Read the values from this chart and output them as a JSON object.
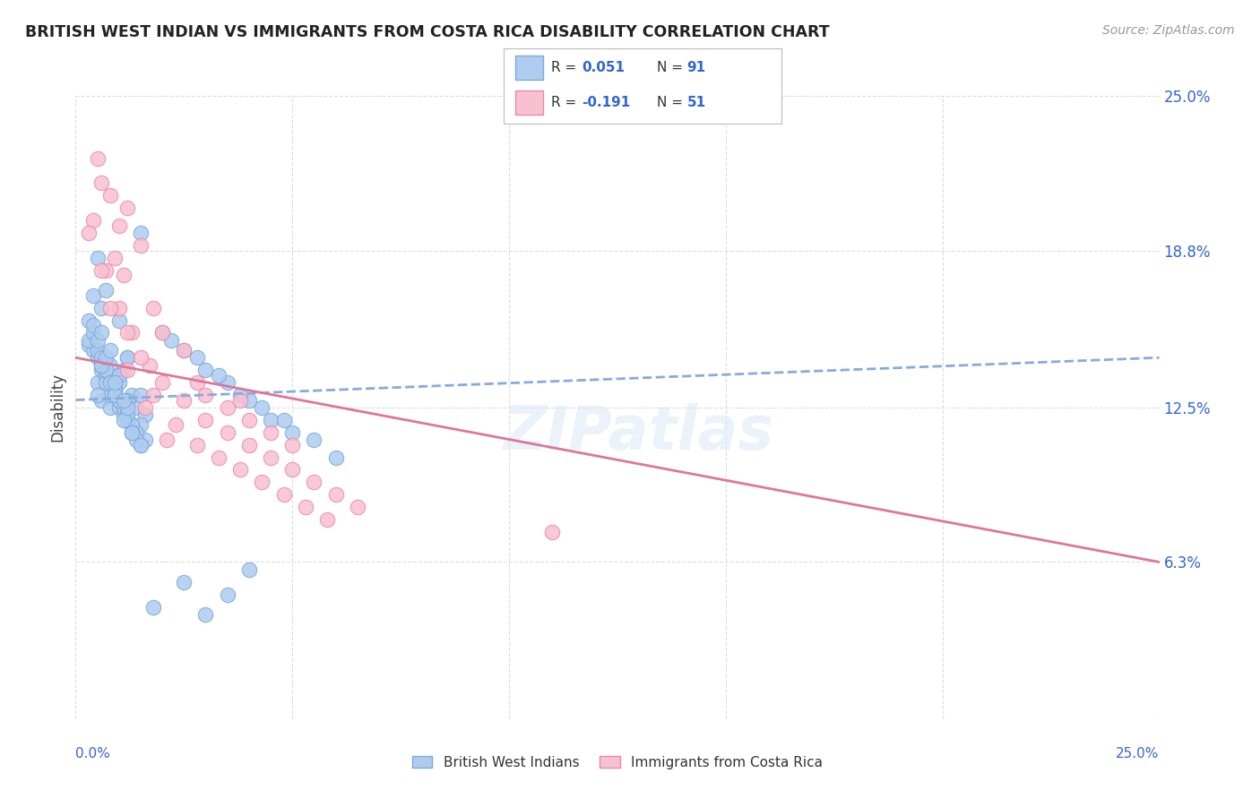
{
  "title": "BRITISH WEST INDIAN VS IMMIGRANTS FROM COSTA RICA DISABILITY CORRELATION CHART",
  "source": "Source: ZipAtlas.com",
  "xmin": 0.0,
  "xmax": 25.0,
  "ymin": 0.0,
  "ymax": 25.0,
  "legend_r1": "0.051",
  "legend_n1": "91",
  "legend_r2": "-0.191",
  "legend_n2": "51",
  "series1_label": "British West Indians",
  "series2_label": "Immigrants from Costa Rica",
  "series1_color": "#aeccf0",
  "series2_color": "#f8c0d0",
  "series1_edge_color": "#7aaad8",
  "series2_edge_color": "#e88aaa",
  "trend_color_blue": "#88aadd",
  "trend_color_pink": "#dd7799",
  "r_color": "#3366cc",
  "background_color": "#ffffff",
  "grid_color": "#dddddd",
  "title_color": "#222222",
  "watermark": "ZIPatlas",
  "series1_x": [
    0.5,
    0.8,
    1.0,
    1.2,
    0.3,
    0.6,
    0.9,
    1.1,
    1.4,
    0.7,
    1.3,
    1.6,
    0.4,
    0.8,
    1.0,
    1.5,
    0.6,
    0.9,
    1.2,
    0.3,
    0.5,
    0.7,
    1.0,
    1.3,
    1.6,
    0.4,
    0.8,
    1.1,
    0.6,
    0.9,
    1.2,
    0.5,
    0.7,
    1.0,
    1.4,
    0.3,
    0.6,
    0.8,
    1.1,
    1.3,
    0.5,
    0.7,
    0.9,
    1.2,
    1.5,
    0.4,
    0.6,
    0.8,
    1.0,
    1.3,
    0.5,
    0.7,
    0.9,
    1.1,
    1.4,
    0.6,
    0.8,
    1.0,
    1.2,
    1.5,
    0.4,
    0.6,
    0.9,
    1.1,
    1.3,
    0.5,
    0.7,
    1.0,
    1.2,
    1.5,
    2.0,
    2.5,
    3.0,
    3.5,
    4.0,
    4.5,
    5.0,
    6.0,
    2.2,
    2.8,
    3.3,
    3.8,
    4.3,
    4.8,
    5.5,
    1.8,
    2.5,
    3.0,
    3.5,
    4.0,
    1.5
  ],
  "series1_y": [
    13.5,
    14.2,
    13.8,
    14.5,
    15.0,
    12.8,
    13.2,
    14.0,
    12.5,
    13.8,
    13.0,
    12.2,
    14.8,
    12.5,
    13.5,
    11.8,
    14.0,
    13.2,
    12.8,
    15.2,
    14.5,
    13.8,
    12.5,
    11.8,
    11.2,
    15.5,
    13.0,
    12.2,
    14.2,
    13.5,
    12.0,
    14.8,
    13.5,
    12.8,
    11.5,
    16.0,
    14.5,
    13.8,
    12.5,
    11.8,
    15.2,
    14.0,
    13.2,
    12.2,
    11.0,
    15.8,
    14.2,
    13.5,
    12.8,
    11.5,
    13.0,
    14.5,
    13.0,
    12.0,
    11.2,
    16.5,
    14.8,
    13.8,
    12.5,
    11.0,
    17.0,
    15.5,
    13.5,
    12.8,
    11.5,
    18.5,
    17.2,
    16.0,
    14.5,
    13.0,
    15.5,
    14.8,
    14.0,
    13.5,
    12.8,
    12.0,
    11.5,
    10.5,
    15.2,
    14.5,
    13.8,
    13.0,
    12.5,
    12.0,
    11.2,
    4.5,
    5.5,
    4.2,
    5.0,
    6.0,
    19.5
  ],
  "series2_x": [
    0.5,
    0.8,
    1.2,
    1.0,
    0.6,
    0.9,
    1.5,
    0.4,
    1.1,
    1.8,
    2.0,
    2.5,
    0.7,
    1.3,
    1.7,
    2.8,
    3.0,
    3.5,
    4.0,
    5.0,
    4.5,
    3.8,
    0.3,
    0.6,
    1.0,
    1.5,
    2.0,
    2.5,
    3.0,
    3.5,
    4.0,
    4.5,
    5.0,
    5.5,
    6.0,
    6.5,
    1.2,
    1.8,
    2.3,
    2.8,
    3.3,
    3.8,
    4.3,
    4.8,
    5.3,
    5.8,
    0.8,
    1.2,
    1.6,
    2.1,
    11.0
  ],
  "series2_y": [
    22.5,
    21.0,
    20.5,
    19.8,
    21.5,
    18.5,
    19.0,
    20.0,
    17.8,
    16.5,
    15.5,
    14.8,
    18.0,
    15.5,
    14.2,
    13.5,
    13.0,
    12.5,
    12.0,
    11.0,
    11.5,
    12.8,
    19.5,
    18.0,
    16.5,
    14.5,
    13.5,
    12.8,
    12.0,
    11.5,
    11.0,
    10.5,
    10.0,
    9.5,
    9.0,
    8.5,
    15.5,
    13.0,
    11.8,
    11.0,
    10.5,
    10.0,
    9.5,
    9.0,
    8.5,
    8.0,
    16.5,
    14.0,
    12.5,
    11.2,
    7.5
  ],
  "trend1_x0": 0.0,
  "trend1_y0": 12.8,
  "trend1_x1": 25.0,
  "trend1_y1": 14.5,
  "trend2_x0": 0.0,
  "trend2_y0": 14.5,
  "trend2_x1": 25.0,
  "trend2_y1": 6.3
}
